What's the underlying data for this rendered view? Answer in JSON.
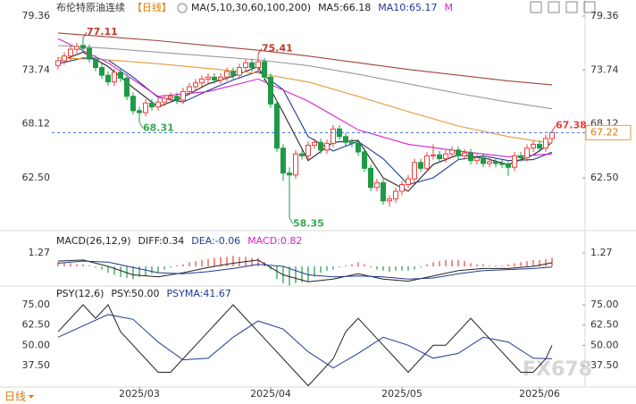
{
  "header": {
    "title": "布伦特原油连续",
    "period": "【日线】",
    "ma_params": "MA(5,10,30,60,100,200)",
    "more": "M"
  },
  "footer": {
    "period": "日线"
  },
  "watermark": "FX678",
  "chart_data": [
    {
      "type": "candlestick",
      "xlim": [
        -1,
        83
      ],
      "ylim": [
        57.19,
        79.92
      ],
      "yticks": [
        79.36,
        73.74,
        68.12,
        {
          "value": 62.5,
          "label": "62.50"
        }
      ],
      "xticks": [
        {
          "value": 13,
          "label": "2025/03"
        },
        {
          "value": 34,
          "label": "2025/04"
        },
        {
          "value": 55,
          "label": "2025/05"
        },
        {
          "value": 77,
          "label": "2025/06"
        }
      ],
      "up_color": "#e8413b",
      "down_color": "#1f9a46",
      "open": [
        74.2,
        74.7,
        75.2,
        75.9,
        76.3,
        76.0,
        74.9,
        74.0,
        73.2,
        72.5,
        73.5,
        72.9,
        71.0,
        69.5,
        69.3,
        70.3,
        69.9,
        70.4,
        70.8,
        71.0,
        70.6,
        71.5,
        72.0,
        72.4,
        72.8,
        73.0,
        72.7,
        73.0,
        73.6,
        73.2,
        74.0,
        74.5,
        74.0,
        74.6,
        73.0,
        70.2,
        65.6,
        63.0,
        62.8,
        65.0,
        64.8,
        65.9,
        66.2,
        65.4,
        66.1,
        67.6,
        66.8,
        66.2,
        66.1,
        65.2,
        63.5,
        61.5,
        62.0,
        60.1,
        60.3,
        61.1,
        61.8,
        62.4,
        64.1,
        63.5,
        64.8,
        64.9,
        64.5,
        65.0,
        65.4,
        64.8,
        65.1,
        64.3,
        64.6,
        64.0,
        64.2,
        64.0,
        63.9,
        63.6,
        64.8,
        64.6,
        65.6,
        66.0,
        65.6,
        66.6
      ],
      "high": [
        75.1,
        75.6,
        76.3,
        76.6,
        77.11,
        76.4,
        75.3,
        74.4,
        73.6,
        73.9,
        73.9,
        73.3,
        71.4,
        69.9,
        70.7,
        70.7,
        70.8,
        71.2,
        71.4,
        71.4,
        71.9,
        72.4,
        72.8,
        73.2,
        73.4,
        73.4,
        73.4,
        74.0,
        74.0,
        74.4,
        74.9,
        74.9,
        75.41,
        75.0,
        73.4,
        70.6,
        66.0,
        63.6,
        65.4,
        65.4,
        66.3,
        66.6,
        66.6,
        66.5,
        68.0,
        68.0,
        67.2,
        66.6,
        66.5,
        65.6,
        63.9,
        62.4,
        62.4,
        60.7,
        61.5,
        62.2,
        62.8,
        64.5,
        64.5,
        65.2,
        66.0,
        65.3,
        65.4,
        65.8,
        65.8,
        65.5,
        65.5,
        65.0,
        65.0,
        64.6,
        64.6,
        64.4,
        64.3,
        65.2,
        65.2,
        66.0,
        66.4,
        66.4,
        67.0,
        67.38
      ],
      "low": [
        73.8,
        74.3,
        74.8,
        75.5,
        75.6,
        74.5,
        73.6,
        72.8,
        72.1,
        72.1,
        72.5,
        70.6,
        69.1,
        68.31,
        68.9,
        69.5,
        69.5,
        70.0,
        70.4,
        70.2,
        70.2,
        71.1,
        71.6,
        72.0,
        72.4,
        72.3,
        72.3,
        72.6,
        72.8,
        72.8,
        73.6,
        73.6,
        73.6,
        72.6,
        69.8,
        65.2,
        62.2,
        58.35,
        62.4,
        64.4,
        64.4,
        65.5,
        65.0,
        65.0,
        65.7,
        66.4,
        65.8,
        65.7,
        64.8,
        63.1,
        61.1,
        61.1,
        59.7,
        59.5,
        59.9,
        60.7,
        61.4,
        62.0,
        63.1,
        63.1,
        64.4,
        64.1,
        64.1,
        64.6,
        64.4,
        64.4,
        63.9,
        63.9,
        63.6,
        63.6,
        63.6,
        63.5,
        62.7,
        63.2,
        64.2,
        64.2,
        65.2,
        65.2,
        65.2,
        66.2
      ],
      "close": [
        74.7,
        75.2,
        75.9,
        76.2,
        76.0,
        74.9,
        74.0,
        73.2,
        72.5,
        73.5,
        72.9,
        71.0,
        69.5,
        69.3,
        70.3,
        69.9,
        70.4,
        70.8,
        71.0,
        70.6,
        71.5,
        72.0,
        72.4,
        72.8,
        73.0,
        72.7,
        73.0,
        73.6,
        73.2,
        74.0,
        74.5,
        74.0,
        74.6,
        73.0,
        70.2,
        65.6,
        63.0,
        62.8,
        65.0,
        64.8,
        65.9,
        66.2,
        65.4,
        66.1,
        67.6,
        66.8,
        66.2,
        66.1,
        65.2,
        63.5,
        61.5,
        62.0,
        60.1,
        60.3,
        61.1,
        61.8,
        62.4,
        64.1,
        63.5,
        64.8,
        64.9,
        64.5,
        65.0,
        65.4,
        64.8,
        65.1,
        64.3,
        64.6,
        64.0,
        64.2,
        64.0,
        63.9,
        63.6,
        64.8,
        64.6,
        65.6,
        66.0,
        65.6,
        66.6,
        67.22
      ],
      "ma_lines": [
        {
          "name": "MA5:66.18",
          "color": "#222222",
          "x": [
            0,
            4,
            8,
            12,
            16,
            20,
            24,
            28,
            32,
            36,
            40,
            44,
            48,
            52,
            56,
            60,
            64,
            68,
            72,
            76,
            79
          ],
          "values": [
            74.6,
            75.6,
            74.1,
            71.9,
            69.9,
            70.9,
            72.3,
            73.1,
            74.1,
            69.3,
            64.3,
            66.2,
            66.4,
            62.5,
            61.1,
            63.9,
            64.9,
            64.6,
            63.9,
            64.9,
            66.18
          ]
        },
        {
          "name": "MA10:65.17",
          "color": "#1f3a93",
          "x": [
            0,
            4,
            8,
            12,
            16,
            20,
            24,
            28,
            32,
            36,
            40,
            44,
            48,
            52,
            56,
            60,
            64,
            68,
            72,
            76,
            79
          ],
          "values": [
            74.4,
            75.0,
            74.8,
            73.0,
            70.9,
            70.4,
            71.6,
            72.7,
            73.6,
            71.7,
            66.8,
            65.3,
            66.3,
            64.5,
            61.8,
            62.5,
            64.4,
            64.8,
            64.3,
            64.4,
            65.17
          ]
        },
        {
          "color": "#d61fd0",
          "x": [
            0,
            8,
            16,
            24,
            32,
            40,
            48,
            56,
            64,
            72,
            79
          ],
          "values": [
            77.0,
            74.5,
            71.0,
            71.5,
            72.8,
            70.5,
            67.5,
            66.0,
            65.3,
            64.7,
            65.0
          ]
        },
        {
          "color": "#e59a3c",
          "x": [
            0,
            8,
            16,
            24,
            32,
            40,
            48,
            56,
            64,
            72,
            79
          ],
          "values": [
            75.0,
            74.8,
            74.4,
            73.9,
            73.4,
            72.5,
            71.0,
            69.4,
            67.9,
            66.8,
            66.1
          ]
        },
        {
          "color": "#999999",
          "x": [
            0,
            8,
            16,
            24,
            32,
            40,
            48,
            56,
            64,
            72,
            79
          ],
          "values": [
            76.3,
            76.0,
            75.6,
            75.2,
            74.8,
            74.2,
            73.3,
            72.3,
            71.3,
            70.4,
            69.7
          ]
        },
        {
          "color": "#a0453a",
          "x": [
            0,
            8,
            16,
            24,
            32,
            40,
            48,
            56,
            64,
            72,
            79
          ],
          "values": [
            77.6,
            77.2,
            76.8,
            76.3,
            75.8,
            75.2,
            74.5,
            73.8,
            73.2,
            72.6,
            72.2
          ]
        }
      ],
      "markers": [
        {
          "x": 4,
          "value": 77.11,
          "color": "#c0392b"
        },
        {
          "x": 32,
          "value": 75.41,
          "color": "#c0392b"
        },
        {
          "x": 13,
          "value": 68.31,
          "color": "#3aa655"
        },
        {
          "x": 37,
          "value": 58.35,
          "color": "#3aa655"
        },
        {
          "x": 79,
          "value": 67.38,
          "color": "#e8413b"
        }
      ],
      "price_line": 67.22
    },
    {
      "type": "macd",
      "title": "MACD(26,12,9)",
      "xlim": [
        -1,
        83
      ],
      "ylim": [
        -1.69,
        3.05
      ],
      "yticks": [
        1.27
      ],
      "histogram": {
        "name": "MACD:0.82",
        "color": "#d61fd0",
        "up_color": "#e8413b",
        "down_color": "#1f9a46",
        "values": [
          0.4,
          0.3,
          0.3,
          0.2,
          0.2,
          0.1,
          -0.1,
          -0.3,
          -0.6,
          -0.8,
          -1.0,
          -1.1,
          -1.2,
          -1.0,
          -0.9,
          -0.7,
          -0.6,
          -0.3,
          -0.1,
          0.1,
          0.2,
          0.4,
          0.5,
          0.6,
          0.7,
          0.8,
          0.9,
          0.9,
          1.0,
          0.9,
          0.9,
          0.8,
          0.8,
          0.4,
          -0.3,
          -1.2,
          -1.6,
          -1.8,
          -1.6,
          -1.5,
          -1.4,
          -1.0,
          -0.6,
          -0.4,
          -0.3,
          -0.1,
          0.1,
          0.2,
          0.4,
          0.2,
          -0.1,
          -0.3,
          -0.4,
          -0.5,
          -0.4,
          -0.4,
          -0.4,
          -0.3,
          -0.1,
          0.2,
          0.4,
          0.5,
          0.6,
          0.6,
          0.6,
          0.5,
          0.3,
          0.2,
          0.2,
          0.1,
          0.1,
          0.1,
          0.2,
          0.3,
          0.4,
          0.5,
          0.6,
          0.6,
          0.7,
          0.82
        ]
      },
      "series": [
        {
          "name": "DIFF:0.34",
          "color": "#222222",
          "x": [
            0,
            4,
            8,
            12,
            16,
            20,
            24,
            28,
            32,
            36,
            40,
            44,
            48,
            52,
            56,
            60,
            64,
            68,
            72,
            76,
            79
          ],
          "values": [
            0.5,
            0.6,
            0.0,
            -0.8,
            -1.0,
            -0.6,
            -0.1,
            0.3,
            0.6,
            -0.8,
            -1.45,
            -1.2,
            -0.7,
            -1.2,
            -1.4,
            -0.9,
            -0.4,
            -0.2,
            -0.2,
            0.0,
            0.34
          ]
        },
        {
          "name": "DEA:-0.06",
          "color": "#1f3a93",
          "x": [
            0,
            4,
            8,
            12,
            16,
            20,
            24,
            28,
            32,
            36,
            40,
            44,
            48,
            52,
            56,
            60,
            64,
            68,
            72,
            76,
            79
          ],
          "values": [
            0.3,
            0.5,
            0.4,
            -0.1,
            -0.6,
            -0.7,
            -0.5,
            -0.2,
            0.2,
            0.0,
            -0.8,
            -1.0,
            -0.9,
            -1.0,
            -1.2,
            -1.1,
            -0.7,
            -0.4,
            -0.3,
            -0.2,
            -0.06
          ]
        }
      ]
    },
    {
      "type": "line",
      "title": "PSY(12,6)",
      "xlim": [
        -1,
        83
      ],
      "ylim": [
        24.8,
        85.5
      ],
      "yticks": [
        {
          "value": 75,
          "label": "75.00"
        },
        {
          "value": 62.5,
          "label": "62.50"
        },
        {
          "value": 50,
          "label": "50.00"
        },
        {
          "value": 37.5,
          "label": "37.50"
        }
      ],
      "series": [
        {
          "name": "PSY:50.00",
          "color": "#222222",
          "x": [
            0,
            2,
            4,
            6,
            8,
            10,
            12,
            14,
            16,
            18,
            20,
            22,
            24,
            26,
            28,
            30,
            32,
            34,
            36,
            38,
            40,
            42,
            44,
            46,
            48,
            50,
            52,
            54,
            56,
            58,
            60,
            62,
            64,
            66,
            68,
            70,
            72,
            74,
            76,
            78,
            79
          ],
          "values": [
            58.33,
            66.67,
            75,
            66.67,
            75,
            58.33,
            50,
            41.67,
            33.33,
            33.33,
            41.67,
            50,
            58.33,
            66.67,
            75,
            66.67,
            58.33,
            50,
            41.67,
            33.33,
            25,
            33.33,
            41.67,
            58.33,
            66.67,
            58.33,
            50,
            41.67,
            33.33,
            41.67,
            50,
            50,
            58.33,
            66.67,
            58.33,
            50,
            41.67,
            33.33,
            33.33,
            41.67,
            50
          ]
        },
        {
          "name": "PSYMA:41.67",
          "color": "#1f3a93",
          "x": [
            0,
            4,
            8,
            12,
            16,
            20,
            24,
            28,
            32,
            36,
            40,
            44,
            48,
            52,
            56,
            60,
            64,
            68,
            72,
            76,
            79
          ],
          "values": [
            55,
            62,
            69,
            66,
            52,
            41,
            42,
            55,
            65,
            60,
            46,
            36,
            45,
            55,
            50,
            42,
            45,
            55,
            52,
            42,
            41.67
          ]
        }
      ]
    }
  ]
}
